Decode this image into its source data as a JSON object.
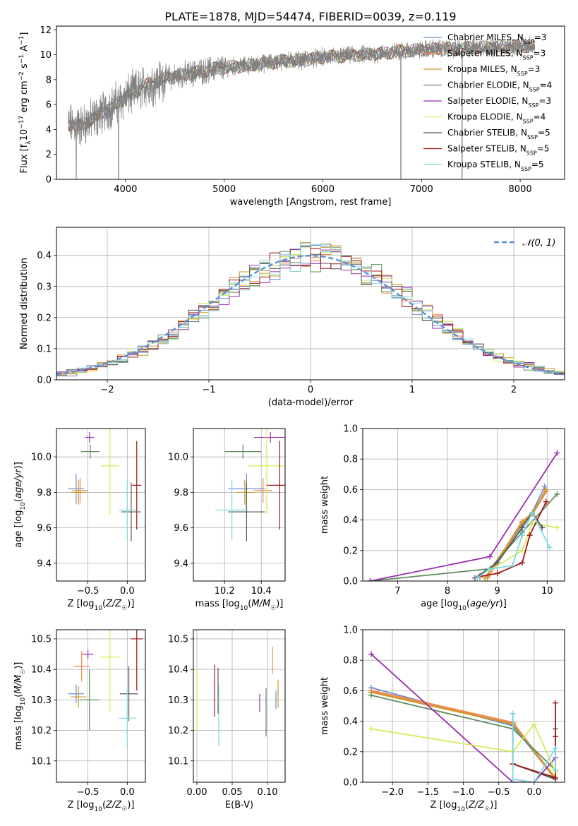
{
  "figure_title": "PLATE=1878, MJD=54474, FIBERID=0039, z=0.119",
  "legend_entries": [
    {
      "label": "Chabrier MILES, N",
      "sub": "SSP",
      "tail": "=3",
      "color": "#6b8fd6"
    },
    {
      "label": "Salpeter MILES, N",
      "sub": "SSP",
      "tail": "=3",
      "color": "#f08a50"
    },
    {
      "label": "Kroupa MILES, N",
      "sub": "SSP",
      "tail": "=3",
      "color": "#c89b2a"
    },
    {
      "label": "Chabrier ELODIE, N",
      "sub": "SSP",
      "tail": "=4",
      "color": "#5e8c5e"
    },
    {
      "label": "Salpeter ELODIE, N",
      "sub": "SSP",
      "tail": "=3",
      "color": "#9a2fb0"
    },
    {
      "label": "Kroupa ELODIE, N",
      "sub": "SSP",
      "tail": "=4",
      "color": "#d4ec5a"
    },
    {
      "label": "Chabrier STELIB, N",
      "sub": "SSP",
      "tail": "=5",
      "color": "#555555"
    },
    {
      "label": "Salpeter STELIB, N",
      "sub": "SSP",
      "tail": "=5",
      "color": "#a01818"
    },
    {
      "label": "Kroupa STELIB, N",
      "sub": "SSP",
      "tail": "=5",
      "color": "#80d8e0"
    }
  ],
  "chart_data": [
    {
      "id": "spectrum",
      "type": "line",
      "xlabel": "wavelength [Angstrom, rest frame]",
      "ylabel": "Flux [f_λ 10^-17 erg cm^-2 s^-1 A^-1]",
      "xlim": [
        3300,
        8450
      ],
      "ylim": [
        0,
        12.3
      ],
      "xticks": [
        4000,
        5000,
        6000,
        7000,
        8000
      ],
      "yticks": [
        0,
        2,
        4,
        6,
        8,
        10,
        12
      ],
      "data_color": "#808080",
      "data_range": [
        3420,
        8150
      ],
      "continuum": {
        "x": [
          3420,
          3550,
          3700,
          3850,
          4000,
          4200,
          4400,
          4600,
          4800,
          5000,
          5200,
          5400,
          5600,
          5800,
          6000,
          6200,
          6400,
          6600,
          6800,
          7000,
          7200,
          7400,
          7600,
          7800,
          8000,
          8150
        ],
        "y": [
          4.4,
          4.3,
          5.0,
          5.8,
          6.6,
          7.5,
          8.1,
          8.4,
          8.7,
          9.0,
          9.1,
          9.3,
          9.5,
          9.6,
          9.8,
          9.9,
          10.0,
          10.1,
          10.3,
          10.4,
          10.5,
          10.5,
          10.6,
          10.6,
          10.7,
          10.7
        ]
      },
      "dips": [
        {
          "x": 3500,
          "y": 0
        },
        {
          "x": 3930,
          "y": 0
        },
        {
          "x": 6790,
          "y": 0
        },
        {
          "x": 7410,
          "y": 0
        }
      ],
      "grid": false
    },
    {
      "id": "residuals",
      "type": "line",
      "xlabel": "(data-model)/error",
      "ylabel": "Normed distribution",
      "xlim": [
        -2.5,
        2.5
      ],
      "ylim": [
        0,
        0.49
      ],
      "xticks": [
        -2,
        -1,
        0,
        1,
        2
      ],
      "yticks": [
        0.0,
        0.1,
        0.2,
        0.3,
        0.4
      ],
      "grid": true,
      "reference": {
        "name": "N(0,1)",
        "color": "#5b8fd8"
      }
    },
    {
      "id": "age_vs_Z",
      "type": "scatter",
      "xlabel": "Z [log10(Z/Z☉)]",
      "ylabel": "age [log10(age/yr)]",
      "xlim": [
        -0.9,
        0.23
      ],
      "ylim": [
        9.3,
        10.16
      ],
      "xticks": [
        -0.5,
        0.0
      ],
      "yticks": [
        9.4,
        9.6,
        9.8,
        10.0
      ],
      "grid": true,
      "points": [
        {
          "x": -0.65,
          "y": 9.82,
          "xerr": 0.2,
          "yerr": 0.17,
          "model": "Chabrier MILES"
        },
        {
          "x": -0.6,
          "y": 9.81,
          "xerr": 0.2,
          "yerr": 0.14,
          "model": "Salpeter MILES"
        },
        {
          "x": -0.62,
          "y": 9.8,
          "xerr": 0.2,
          "yerr": 0.14,
          "model": "Kroupa MILES"
        },
        {
          "x": -0.47,
          "y": 10.03,
          "xerr": 0.23,
          "yerr": 0.08,
          "model": "Chabrier ELODIE"
        },
        {
          "x": -0.48,
          "y": 10.11,
          "xerr": 0.11,
          "yerr": 0.06,
          "model": "Salpeter ELODIE"
        },
        {
          "x": -0.22,
          "y": 9.95,
          "xerr": 0.23,
          "yerr": 0.55,
          "model": "Kroupa ELODIE"
        },
        {
          "x": 0.05,
          "y": 9.69,
          "xerr": 0.25,
          "yerr": 0.33,
          "model": "Chabrier STELIB"
        },
        {
          "x": 0.12,
          "y": 9.84,
          "xerr": 0.12,
          "yerr": 0.5,
          "model": "Salpeter STELIB"
        },
        {
          "x": 0.0,
          "y": 9.7,
          "xerr": 0.22,
          "yerr": 0.34,
          "model": "Kroupa STELIB"
        }
      ]
    },
    {
      "id": "age_vs_mass",
      "type": "scatter",
      "xlabel": "mass [log10(M/M☉)]",
      "ylabel": "",
      "xlim": [
        10.03,
        10.53
      ],
      "ylim": [
        9.3,
        10.16
      ],
      "xticks": [
        10.2,
        10.4
      ],
      "yticks": [
        9.4,
        9.6,
        9.8,
        10.0
      ],
      "grid": true,
      "points": [
        {
          "x": 10.32,
          "y": 9.82,
          "xerr": 0.2,
          "yerr": 0.17,
          "model": "Chabrier MILES"
        },
        {
          "x": 10.41,
          "y": 9.81,
          "xerr": 0.1,
          "yerr": 0.14,
          "model": "Salpeter MILES"
        },
        {
          "x": 10.31,
          "y": 9.8,
          "xerr": 0.1,
          "yerr": 0.14,
          "model": "Kroupa MILES"
        },
        {
          "x": 10.3,
          "y": 10.03,
          "xerr": 0.2,
          "yerr": 0.08,
          "model": "Chabrier ELODIE"
        },
        {
          "x": 10.45,
          "y": 10.11,
          "xerr": 0.18,
          "yerr": 0.06,
          "model": "Salpeter ELODIE"
        },
        {
          "x": 10.43,
          "y": 9.95,
          "xerr": 0.2,
          "yerr": 0.55,
          "model": "Kroupa ELODIE"
        },
        {
          "x": 10.32,
          "y": 9.69,
          "xerr": 0.2,
          "yerr": 0.33,
          "model": "Chabrier STELIB"
        },
        {
          "x": 10.5,
          "y": 9.84,
          "xerr": 0.14,
          "yerr": 0.5,
          "model": "Salpeter STELIB"
        },
        {
          "x": 10.24,
          "y": 9.7,
          "xerr": 0.18,
          "yerr": 0.34,
          "model": "Kroupa STELIB"
        }
      ]
    },
    {
      "id": "massweight_vs_age",
      "type": "line",
      "xlabel": "age [log10(age/yr)]",
      "ylabel": "mass weight",
      "xlim": [
        6.3,
        10.35
      ],
      "ylim": [
        0,
        1.0
      ],
      "xticks": [
        7,
        8,
        9,
        10
      ],
      "yticks": [
        0.0,
        0.2,
        0.4,
        0.6,
        0.8,
        1.0
      ],
      "grid": true,
      "series": [
        {
          "model": "Chabrier MILES",
          "x": [
            8.8,
            9.5,
            9.7,
            9.95
          ],
          "y": [
            0.03,
            0.37,
            0.45,
            0.62
          ]
        },
        {
          "model": "Salpeter MILES",
          "x": [
            8.8,
            9.5,
            9.7,
            9.98
          ],
          "y": [
            0.02,
            0.39,
            0.44,
            0.59
          ]
        },
        {
          "model": "Kroupa MILES",
          "x": [
            8.75,
            9.5,
            9.7,
            9.97
          ],
          "y": [
            0.02,
            0.38,
            0.44,
            0.6
          ]
        },
        {
          "model": "Chabrier ELODIE",
          "x": [
            6.45,
            8.85,
            9.5,
            10.2
          ],
          "y": [
            0.0,
            0.08,
            0.32,
            0.57
          ]
        },
        {
          "model": "Salpeter ELODIE",
          "x": [
            6.45,
            8.85,
            10.2
          ],
          "y": [
            0.0,
            0.16,
            0.84
          ]
        },
        {
          "model": "Kroupa ELODIE",
          "x": [
            8.85,
            9.5,
            9.7,
            10.2
          ],
          "y": [
            0.07,
            0.2,
            0.38,
            0.35
          ]
        },
        {
          "model": "Chabrier STELIB",
          "x": [
            8.55,
            9.0,
            9.5,
            9.7,
            9.9
          ],
          "y": [
            0.02,
            0.12,
            0.35,
            0.45,
            0.35
          ]
        },
        {
          "model": "Salpeter STELIB",
          "x": [
            8.65,
            9.0,
            9.5,
            9.65,
            9.98
          ],
          "y": [
            0.03,
            0.05,
            0.12,
            0.3,
            0.52
          ]
        },
        {
          "model": "Kroupa STELIB",
          "x": [
            8.6,
            8.85,
            9.3,
            9.5,
            9.7,
            10.05
          ],
          "y": [
            0.02,
            0.08,
            0.1,
            0.3,
            0.45,
            0.22
          ]
        }
      ]
    },
    {
      "id": "mass_vs_Z",
      "type": "scatter",
      "xlabel": "Z [log10(Z/Z☉)]",
      "ylabel": "mass [log10(M/M☉)]",
      "xlim": [
        -0.9,
        0.23
      ],
      "ylim": [
        10.03,
        10.53
      ],
      "xticks": [
        -0.5,
        0.0
      ],
      "yticks": [
        10.1,
        10.2,
        10.3,
        10.4,
        10.5
      ],
      "grid": true,
      "points": [
        {
          "x": -0.65,
          "y": 10.32,
          "xerr": 0.2,
          "yerr": 0.06,
          "model": "Chabrier MILES"
        },
        {
          "x": -0.58,
          "y": 10.41,
          "xerr": 0.2,
          "yerr": 0.1,
          "model": "Salpeter MILES"
        },
        {
          "x": -0.62,
          "y": 10.31,
          "xerr": 0.2,
          "yerr": 0.07,
          "model": "Kroupa MILES"
        },
        {
          "x": -0.48,
          "y": 10.3,
          "xerr": 0.25,
          "yerr": 0.2,
          "model": "Chabrier ELODIE"
        },
        {
          "x": -0.5,
          "y": 10.45,
          "xerr": 0.14,
          "yerr": 0.03,
          "model": "Salpeter ELODIE"
        },
        {
          "x": -0.22,
          "y": 10.44,
          "xerr": 0.25,
          "yerr": 0.36,
          "model": "Kroupa ELODIE"
        },
        {
          "x": 0.02,
          "y": 10.32,
          "xerr": 0.23,
          "yerr": 0.18,
          "model": "Chabrier STELIB"
        },
        {
          "x": 0.12,
          "y": 10.5,
          "xerr": 0.15,
          "yerr": 0.34,
          "model": "Salpeter STELIB"
        },
        {
          "x": 0.0,
          "y": 10.24,
          "xerr": 0.22,
          "yerr": 0.19,
          "model": "Kroupa STELIB"
        }
      ]
    },
    {
      "id": "mass_vs_EBV",
      "type": "scatter",
      "xlabel": "E(B-V)",
      "ylabel": "",
      "xlim": [
        -0.005,
        0.125
      ],
      "ylim": [
        10.03,
        10.53
      ],
      "xticks": [
        0.0,
        0.05,
        0.1
      ],
      "yticks": [
        10.1,
        10.2,
        10.3,
        10.4,
        10.5
      ],
      "grid": true,
      "points": [
        {
          "x": 0.112,
          "y": 10.3,
          "yerr": 0.06,
          "model": "Chabrier MILES"
        },
        {
          "x": 0.107,
          "y": 10.43,
          "yerr": 0.09,
          "model": "Salpeter MILES"
        },
        {
          "x": 0.115,
          "y": 10.32,
          "yerr": 0.09,
          "model": "Kroupa MILES"
        },
        {
          "x": 0.098,
          "y": 10.26,
          "yerr": 0.16,
          "model": "Chabrier ELODIE"
        },
        {
          "x": 0.089,
          "y": 10.29,
          "yerr": 0.06,
          "model": "Salpeter ELODIE"
        },
        {
          "x": 0.0,
          "y": 10.3,
          "yerr": 0.21,
          "model": "Kroupa ELODIE"
        },
        {
          "x": 0.03,
          "y": 10.33,
          "yerr": 0.15,
          "model": "Chabrier STELIB"
        },
        {
          "x": 0.025,
          "y": 10.33,
          "yerr": 0.17,
          "model": "Salpeter STELIB"
        },
        {
          "x": 0.031,
          "y": 10.25,
          "yerr": 0.2,
          "model": "Kroupa STELIB"
        }
      ]
    },
    {
      "id": "massweight_vs_Z",
      "type": "line",
      "xlabel": "Z [log10(Z/Z☉)]",
      "ylabel": "mass weight",
      "xlim": [
        -2.42,
        0.43
      ],
      "ylim": [
        0,
        1.0
      ],
      "xticks": [
        -2.0,
        -1.5,
        -1.0,
        -0.5,
        0.0
      ],
      "yticks": [
        0.0,
        0.2,
        0.4,
        0.6,
        0.8,
        1.0
      ],
      "grid": true,
      "series": [
        {
          "model": "Chabrier MILES",
          "x": [
            -2.3,
            -0.3,
            0.3
          ],
          "y": [
            0.62,
            0.37,
            0.02
          ]
        },
        {
          "model": "Salpeter MILES",
          "x": [
            -2.3,
            -0.3,
            0.3
          ],
          "y": [
            0.6,
            0.39,
            0.02
          ]
        },
        {
          "model": "Kroupa MILES",
          "x": [
            -2.3,
            -0.3,
            0.3
          ],
          "y": [
            0.59,
            0.38,
            0.03
          ]
        },
        {
          "model": "Chabrier ELODIE",
          "x": [
            -2.3,
            -0.3,
            0.3
          ],
          "y": [
            0.57,
            0.35,
            0.08
          ]
        },
        {
          "model": "Salpeter ELODIE",
          "x": [
            -2.3,
            -0.3,
            0.0,
            0.3
          ],
          "y": [
            0.84,
            0.0,
            0.0,
            0.16
          ]
        },
        {
          "model": "Kroupa ELODIE",
          "x": [
            -2.3,
            -0.3,
            0.0,
            0.3
          ],
          "y": [
            0.35,
            0.2,
            0.38,
            0.07
          ]
        },
        {
          "model": "Chabrier STELIB",
          "x": [
            -0.3,
            -0.3,
            0.3,
            0.3
          ],
          "y": [
            0.45,
            0.12,
            0.02,
            0.35
          ]
        },
        {
          "model": "Salpeter STELIB",
          "x": [
            -0.3,
            0.3,
            0.3,
            0.3
          ],
          "y": [
            0.12,
            0.03,
            0.52,
            0.3
          ]
        },
        {
          "model": "Kroupa STELIB",
          "x": [
            -0.3,
            -0.3,
            0.0,
            0.3,
            0.3
          ],
          "y": [
            0.45,
            0.02,
            0.0,
            0.22,
            0.08
          ]
        }
      ]
    }
  ]
}
